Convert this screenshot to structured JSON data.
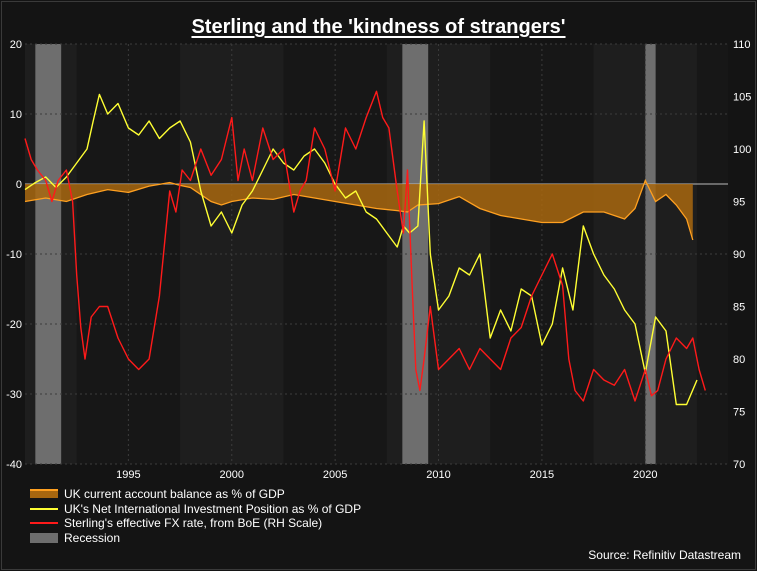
{
  "title": "Sterling and the 'kindness of strangers'",
  "source": "Source: Refinitiv Datastream",
  "legend": [
    {
      "label": "UK current account balance as % of GDP",
      "kind": "area",
      "color": "#ffa020"
    },
    {
      "label": "UK's Net International Investment Position as % of GDP",
      "kind": "line",
      "color": "#ffff33"
    },
    {
      "label": "Sterling's effective FX rate, from BoE (RH Scale)",
      "kind": "line",
      "color": "#ff1a1a"
    },
    {
      "label": "Recession",
      "kind": "rect",
      "color": "#6e6e6e"
    }
  ],
  "chart_data": {
    "type": "line",
    "x_range": [
      1990.0,
      2024.0
    ],
    "x_ticks": [
      1995,
      2000,
      2005,
      2010,
      2015,
      2020
    ],
    "y_left": {
      "range": [
        -40,
        20
      ],
      "ticks": [
        -40,
        -30,
        -20,
        -10,
        0,
        10,
        20
      ]
    },
    "y_right": {
      "range": [
        70,
        110
      ],
      "ticks": [
        70,
        75,
        80,
        85,
        90,
        95,
        100,
        105,
        110
      ]
    },
    "grid": true,
    "recessions": [
      [
        1990.5,
        1991.75
      ],
      [
        2008.25,
        2009.5
      ],
      [
        2020.0,
        2020.5
      ]
    ],
    "series": [
      {
        "name": "UK current account balance as % of GDP",
        "axis": "left",
        "style": "area",
        "color": "#ffa020",
        "fill": "#a8670f",
        "x": [
          1990.0,
          1991.0,
          1992.0,
          1993.0,
          1994.0,
          1995.0,
          1996.0,
          1997.0,
          1997.5,
          1998.0,
          1999.0,
          1999.5,
          2000.0,
          2001.0,
          2002.0,
          2003.0,
          2004.0,
          2005.0,
          2006.0,
          2007.0,
          2008.0,
          2008.5,
          2009.0,
          2010.0,
          2011.0,
          2012.0,
          2013.0,
          2014.0,
          2015.0,
          2016.0,
          2017.0,
          2018.0,
          2019.0,
          2019.5,
          2020.0,
          2020.5,
          2021.0,
          2021.5,
          2022.0,
          2022.3
        ],
        "values": [
          -2.5,
          -2.0,
          -2.5,
          -1.5,
          -0.8,
          -1.2,
          -0.3,
          0.2,
          -0.2,
          -0.5,
          -2.5,
          -3.0,
          -2.5,
          -2.0,
          -2.2,
          -1.5,
          -2.0,
          -2.5,
          -3.0,
          -3.5,
          -3.8,
          -4.0,
          -3.0,
          -2.8,
          -1.8,
          -3.5,
          -4.5,
          -5.0,
          -5.5,
          -5.5,
          -4.0,
          -4.0,
          -5.0,
          -3.5,
          0.5,
          -2.5,
          -1.5,
          -3.0,
          -5.0,
          -8.0
        ]
      },
      {
        "name": "UK's Net International Investment Position as % of GDP",
        "axis": "left",
        "style": "line",
        "color": "#ffff33",
        "x": [
          1990.0,
          1990.5,
          1991.0,
          1991.5,
          1992.0,
          1992.5,
          1993.0,
          1993.3,
          1993.6,
          1994.0,
          1994.5,
          1995.0,
          1995.5,
          1996.0,
          1996.5,
          1997.0,
          1997.5,
          1998.0,
          1998.5,
          1999.0,
          1999.5,
          2000.0,
          2000.5,
          2001.0,
          2001.5,
          2002.0,
          2002.5,
          2003.0,
          2003.5,
          2004.0,
          2004.5,
          2005.0,
          2005.5,
          2006.0,
          2006.5,
          2007.0,
          2007.5,
          2008.0,
          2008.3,
          2008.6,
          2009.0,
          2009.3,
          2009.6,
          2010.0,
          2010.5,
          2011.0,
          2011.5,
          2012.0,
          2012.5,
          2013.0,
          2013.5,
          2014.0,
          2014.5,
          2015.0,
          2015.5,
          2016.0,
          2016.5,
          2017.0,
          2017.5,
          2018.0,
          2018.5,
          2019.0,
          2019.5,
          2020.0,
          2020.5,
          2021.0,
          2021.5,
          2022.0,
          2022.5
        ],
        "values": [
          -0.8,
          0.2,
          1.0,
          -0.5,
          1.0,
          3.0,
          5.0,
          9.0,
          12.8,
          10.0,
          11.5,
          8.0,
          7.0,
          9.0,
          6.5,
          8.0,
          9.0,
          6.0,
          -1.0,
          -6.0,
          -4.0,
          -7.0,
          -3.0,
          -1.0,
          2.0,
          5.0,
          3.0,
          2.0,
          4.0,
          5.0,
          3.0,
          0.0,
          -2.0,
          -1.0,
          -4.0,
          -5.0,
          -7.0,
          -9.0,
          -6.0,
          -7.0,
          -6.0,
          9.0,
          -10.0,
          -18.0,
          -16.0,
          -12.0,
          -13.0,
          -10.0,
          -22.0,
          -18.0,
          -21.0,
          -15.0,
          -16.0,
          -23.0,
          -20.0,
          -12.0,
          -18.0,
          -6.0,
          -10.0,
          -13.0,
          -15.0,
          -18.0,
          -20.0,
          -27.0,
          -19.0,
          -21.0,
          -31.5,
          -31.5,
          -28.0
        ]
      },
      {
        "name": "Sterling's effective FX rate, from BoE (RH Scale)",
        "axis": "right",
        "style": "line",
        "color": "#ff1a1a",
        "x": [
          1990.0,
          1990.3,
          1990.6,
          1991.0,
          1991.3,
          1991.6,
          1992.0,
          1992.3,
          1992.5,
          1992.7,
          1992.9,
          1993.2,
          1993.6,
          1994.0,
          1994.5,
          1995.0,
          1995.5,
          1996.0,
          1996.5,
          1997.0,
          1997.3,
          1997.6,
          1998.0,
          1998.5,
          1999.0,
          1999.5,
          2000.0,
          2000.3,
          2000.6,
          2001.0,
          2001.5,
          2002.0,
          2002.5,
          2003.0,
          2003.3,
          2003.6,
          2004.0,
          2004.5,
          2005.0,
          2005.5,
          2006.0,
          2006.5,
          2007.0,
          2007.3,
          2007.6,
          2008.0,
          2008.3,
          2008.5,
          2008.7,
          2008.9,
          2009.1,
          2009.3,
          2009.6,
          2010.0,
          2010.5,
          2011.0,
          2011.5,
          2012.0,
          2012.5,
          2013.0,
          2013.5,
          2014.0,
          2014.5,
          2015.0,
          2015.5,
          2016.0,
          2016.3,
          2016.6,
          2017.0,
          2017.5,
          2018.0,
          2018.5,
          2019.0,
          2019.5,
          2020.0,
          2020.3,
          2020.6,
          2021.0,
          2021.5,
          2022.0,
          2022.3,
          2022.6,
          2022.9
        ],
        "values": [
          101.0,
          99.0,
          98.0,
          97.0,
          95.0,
          97.0,
          98.0,
          95.0,
          88.0,
          83.0,
          80.0,
          84.0,
          85.0,
          85.0,
          82.0,
          80.0,
          79.0,
          80.0,
          86.0,
          96.0,
          94.0,
          98.0,
          97.0,
          100.0,
          97.5,
          99.0,
          103.0,
          97.0,
          100.0,
          97.0,
          102.0,
          99.0,
          100.0,
          94.0,
          96.0,
          97.0,
          102.0,
          100.0,
          96.0,
          102.0,
          100.0,
          103.0,
          105.5,
          103.0,
          102.0,
          96.0,
          92.0,
          98.0,
          88.0,
          79.0,
          77.0,
          80.0,
          85.0,
          79.0,
          80.0,
          81.0,
          79.0,
          81.0,
          80.0,
          79.0,
          82.0,
          83.0,
          86.0,
          88.0,
          90.0,
          87.0,
          80.0,
          77.0,
          76.0,
          79.0,
          78.0,
          77.5,
          79.0,
          76.0,
          79.0,
          76.5,
          77.0,
          80.0,
          82.0,
          81.0,
          82.0,
          79.0,
          77.0
        ]
      }
    ]
  }
}
